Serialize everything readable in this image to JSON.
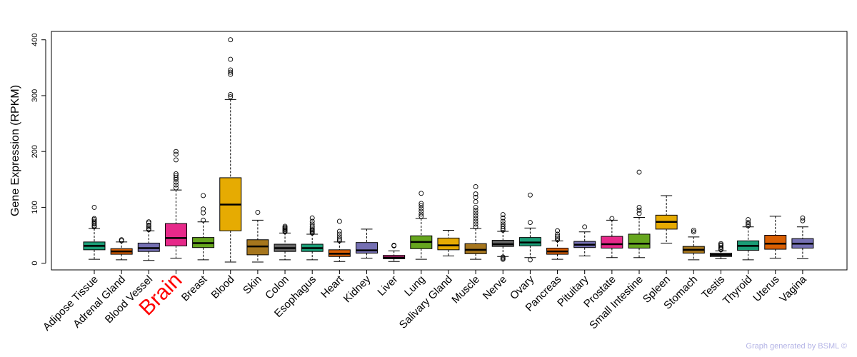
{
  "chart_data": {
    "type": "boxplot",
    "ylabel": "Gene Expression (RPKM)",
    "yticks": [
      0,
      100,
      200,
      300,
      400
    ],
    "ylim": [
      -12,
      415
    ],
    "highlight": "Brain",
    "credit": "Graph generated by BSML ©",
    "categories": [
      {
        "name": "Adipose Tissue",
        "color": "#1b9e77",
        "whisker_low": 7,
        "q1": 24,
        "median": 31,
        "q3": 38,
        "whisker_high": 62,
        "outliers": [
          65,
          67,
          70,
          72,
          75,
          78,
          80,
          100
        ]
      },
      {
        "name": "Adrenal Gland",
        "color": "#d95f02",
        "whisker_low": 6,
        "q1": 16,
        "median": 21,
        "q3": 26,
        "whisker_high": 38,
        "outliers": [
          40,
          42
        ]
      },
      {
        "name": "Blood Vessel",
        "color": "#7570b3",
        "whisker_low": 5,
        "q1": 21,
        "median": 27,
        "q3": 36,
        "whisker_high": 58,
        "outliers": [
          60,
          62,
          65,
          68,
          72,
          74
        ]
      },
      {
        "name": "Brain",
        "color": "#e7298a",
        "whisker_low": 9,
        "q1": 31,
        "median": 45,
        "q3": 71,
        "whisker_high": 131,
        "outliers": [
          135,
          140,
          145,
          150,
          153,
          157,
          160,
          185,
          195,
          200
        ]
      },
      {
        "name": "Breast",
        "color": "#66a61e",
        "whisker_low": 6,
        "q1": 28,
        "median": 36,
        "q3": 46,
        "whisker_high": 74,
        "outliers": [
          77,
          90,
          97,
          121
        ]
      },
      {
        "name": "Blood",
        "color": "#e6ab02",
        "whisker_low": 2,
        "q1": 58,
        "median": 105,
        "q3": 153,
        "whisker_high": 293,
        "outliers": [
          298,
          302,
          338,
          342,
          346,
          365,
          400
        ]
      },
      {
        "name": "Skin",
        "color": "#a6761d",
        "whisker_low": 2,
        "q1": 15,
        "median": 30,
        "q3": 42,
        "whisker_high": 77,
        "outliers": [
          91
        ]
      },
      {
        "name": "Colon",
        "color": "#666666",
        "whisker_low": 6,
        "q1": 21,
        "median": 27,
        "q3": 34,
        "whisker_high": 54,
        "outliers": [
          56,
          58,
          60,
          62,
          64,
          66
        ]
      },
      {
        "name": "Esophagus",
        "color": "#1b9e77",
        "whisker_low": 6,
        "q1": 21,
        "median": 27,
        "q3": 34,
        "whisker_high": 52,
        "outliers": [
          54,
          56,
          58,
          60,
          63,
          66,
          70,
          75,
          81
        ]
      },
      {
        "name": "Heart",
        "color": "#d95f02",
        "whisker_low": 3,
        "q1": 12,
        "median": 17,
        "q3": 24,
        "whisker_high": 38,
        "outliers": [
          40,
          43,
          47,
          52,
          57,
          75
        ]
      },
      {
        "name": "Kidney",
        "color": "#7570b3",
        "whisker_low": 9,
        "q1": 18,
        "median": 23,
        "q3": 37,
        "whisker_high": 61,
        "outliers": []
      },
      {
        "name": "Liver",
        "color": "#e7298a",
        "whisker_low": 3,
        "q1": 8,
        "median": 10,
        "q3": 14,
        "whisker_high": 22,
        "outliers": [
          31,
          32
        ]
      },
      {
        "name": "Lung",
        "color": "#66a61e",
        "whisker_low": 7,
        "q1": 26,
        "median": 38,
        "q3": 49,
        "whisker_high": 80,
        "outliers": [
          84,
          88,
          93,
          98,
          103,
          107,
          125
        ]
      },
      {
        "name": "Salivary Gland",
        "color": "#e6ab02",
        "whisker_low": 13,
        "q1": 24,
        "median": 32,
        "q3": 45,
        "whisker_high": 59,
        "outliers": []
      },
      {
        "name": "Muscle",
        "color": "#a6761d",
        "whisker_low": 7,
        "q1": 17,
        "median": 24,
        "q3": 35,
        "whisker_high": 62,
        "outliers": [
          65,
          70,
          75,
          80,
          85,
          90,
          95,
          100,
          110,
          118,
          124,
          137
        ]
      },
      {
        "name": "Nerve",
        "color": "#666666",
        "whisker_low": 12,
        "q1": 30,
        "median": 34,
        "q3": 41,
        "whisker_high": 57,
        "outliers": [
          7,
          9,
          11,
          59,
          62,
          66,
          70,
          75,
          81,
          87
        ]
      },
      {
        "name": "Ovary",
        "color": "#1b9e77",
        "whisker_low": 10,
        "q1": 31,
        "median": 37,
        "q3": 46,
        "whisker_high": 63,
        "outliers": [
          6,
          73,
          122
        ]
      },
      {
        "name": "Pancreas",
        "color": "#d95f02",
        "whisker_low": 7,
        "q1": 16,
        "median": 21,
        "q3": 27,
        "whisker_high": 40,
        "outliers": [
          42,
          45,
          48,
          52,
          58
        ]
      },
      {
        "name": "Pituitary",
        "color": "#7570b3",
        "whisker_low": 13,
        "q1": 28,
        "median": 33,
        "q3": 39,
        "whisker_high": 56,
        "outliers": [
          65
        ]
      },
      {
        "name": "Prostate",
        "color": "#e7298a",
        "whisker_low": 10,
        "q1": 27,
        "median": 34,
        "q3": 48,
        "whisker_high": 77,
        "outliers": [
          80
        ]
      },
      {
        "name": "Small Intestine",
        "color": "#66a61e",
        "whisker_low": 10,
        "q1": 27,
        "median": 35,
        "q3": 52,
        "whisker_high": 82,
        "outliers": [
          89,
          95,
          100,
          163
        ]
      },
      {
        "name": "Spleen",
        "color": "#e6ab02",
        "whisker_low": 36,
        "q1": 61,
        "median": 74,
        "q3": 86,
        "whisker_high": 121,
        "outliers": []
      },
      {
        "name": "Stomach",
        "color": "#a6761d",
        "whisker_low": 6,
        "q1": 18,
        "median": 24,
        "q3": 30,
        "whisker_high": 47,
        "outliers": [
          56,
          59
        ]
      },
      {
        "name": "Testis",
        "color": "#666666",
        "whisker_low": 8,
        "q1": 12,
        "median": 15,
        "q3": 18,
        "whisker_high": 22,
        "outliers": [
          24,
          26,
          28,
          31,
          33,
          35
        ]
      },
      {
        "name": "Thyroid",
        "color": "#1b9e77",
        "whisker_low": 6,
        "q1": 23,
        "median": 31,
        "q3": 40,
        "whisker_high": 65,
        "outliers": [
          67,
          70,
          73,
          78
        ]
      },
      {
        "name": "Uterus",
        "color": "#d95f02",
        "whisker_low": 9,
        "q1": 25,
        "median": 35,
        "q3": 50,
        "whisker_high": 84,
        "outliers": []
      },
      {
        "name": "Vagina",
        "color": "#7570b3",
        "whisker_low": 8,
        "q1": 27,
        "median": 35,
        "q3": 44,
        "whisker_high": 65,
        "outliers": [
          76,
          81
        ]
      }
    ]
  }
}
